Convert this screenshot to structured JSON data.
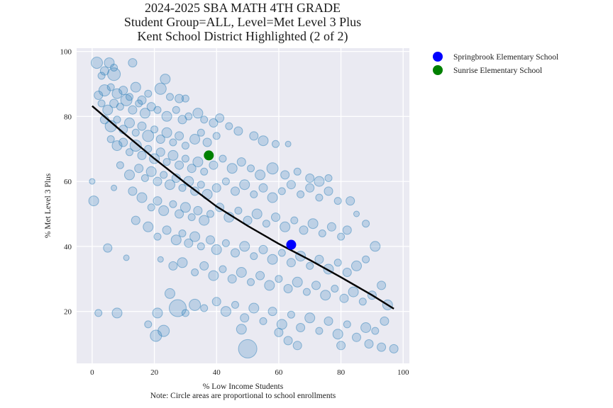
{
  "chart_data": {
    "type": "scatter",
    "title": [
      "2024-2025 SBA MATH 4TH GRADE",
      "Student Group=ALL, Level=Met Level 3 Plus",
      "Kent School District Highlighted (2 of 2)"
    ],
    "xlabel": "% Low Income Students",
    "ylabel": "% Met Level 3 Plus",
    "note": "Note: Circle areas are proportional to school enrollments",
    "xlim": [
      -5,
      102
    ],
    "ylim": [
      4,
      101
    ],
    "xticks": [
      0,
      20,
      40,
      60,
      80,
      100
    ],
    "yticks": [
      20,
      40,
      60,
      80,
      100
    ],
    "grid": true,
    "background_color": "#eaeaf2",
    "point_color": "#1f77b4",
    "legend_placement": "outside-top-right",
    "highlighted": [
      {
        "name": "Springbrook Elementary School",
        "x": 64,
        "y": 40.5,
        "color": "#0000ff"
      },
      {
        "name": "Sunrise Elementary School",
        "x": 37.5,
        "y": 68,
        "color": "#008000"
      }
    ],
    "trend_line": {
      "color": "#000000",
      "points": [
        [
          0,
          83.2
        ],
        [
          10,
          75
        ],
        [
          20,
          67
        ],
        [
          30,
          59.5
        ],
        [
          40,
          52.3
        ],
        [
          50,
          46.3
        ],
        [
          60,
          40.8
        ],
        [
          70,
          35.8
        ],
        [
          80,
          30.5
        ],
        [
          90,
          25
        ],
        [
          97,
          20.8
        ]
      ]
    },
    "points": [
      [
        1.5,
        96.5,
        8
      ],
      [
        4,
        94,
        6
      ],
      [
        5.5,
        96.5,
        7
      ],
      [
        7,
        95,
        5
      ],
      [
        13,
        96.5,
        6
      ],
      [
        7,
        93,
        9
      ],
      [
        3,
        92.5,
        5
      ],
      [
        23.5,
        91.5,
        7
      ],
      [
        2,
        86.5,
        6
      ],
      [
        4,
        88,
        8
      ],
      [
        6,
        89,
        5
      ],
      [
        8,
        87,
        7
      ],
      [
        10,
        88,
        6
      ],
      [
        12,
        86,
        5
      ],
      [
        14,
        89,
        7
      ],
      [
        16,
        85,
        6
      ],
      [
        18,
        87,
        5
      ],
      [
        22,
        88.5,
        8
      ],
      [
        25,
        86,
        5
      ],
      [
        28,
        85.5,
        6
      ],
      [
        30,
        85.5,
        5
      ],
      [
        3,
        84,
        5
      ],
      [
        5,
        82,
        7
      ],
      [
        7,
        84,
        6
      ],
      [
        9,
        83,
        5
      ],
      [
        11,
        85,
        8
      ],
      [
        13,
        82,
        6
      ],
      [
        15,
        84,
        5
      ],
      [
        17,
        81,
        7
      ],
      [
        19,
        83,
        6
      ],
      [
        21,
        82,
        5
      ],
      [
        24,
        80,
        7
      ],
      [
        27,
        82,
        5
      ],
      [
        29,
        79,
        6
      ],
      [
        31,
        80,
        5
      ],
      [
        34,
        81,
        7
      ],
      [
        36,
        79,
        5
      ],
      [
        39,
        78,
        6
      ],
      [
        41,
        79.5,
        6
      ],
      [
        4,
        79,
        6
      ],
      [
        6,
        77,
        8
      ],
      [
        8,
        79,
        5
      ],
      [
        10,
        76,
        6
      ],
      [
        12,
        78,
        7
      ],
      [
        14,
        75,
        5
      ],
      [
        16,
        77,
        6
      ],
      [
        18,
        74,
        8
      ],
      [
        20,
        76,
        5
      ],
      [
        22,
        73,
        6
      ],
      [
        24,
        75,
        7
      ],
      [
        26,
        72,
        5
      ],
      [
        28,
        74,
        6
      ],
      [
        30,
        71,
        5
      ],
      [
        33,
        73,
        7
      ],
      [
        35,
        75,
        5
      ],
      [
        37,
        72,
        6
      ],
      [
        40,
        74,
        5
      ],
      [
        44,
        77,
        5
      ],
      [
        47,
        75.5,
        6
      ],
      [
        52,
        74,
        6
      ],
      [
        55,
        72.5,
        7
      ],
      [
        59,
        71.5,
        5
      ],
      [
        63,
        71.5,
        4
      ],
      [
        6,
        73,
        5
      ],
      [
        8,
        71,
        7
      ],
      [
        10,
        72,
        6
      ],
      [
        12,
        69,
        5
      ],
      [
        14,
        71,
        8
      ],
      [
        16,
        68,
        6
      ],
      [
        18,
        70,
        5
      ],
      [
        20,
        67,
        7
      ],
      [
        22,
        69,
        6
      ],
      [
        24,
        66,
        5
      ],
      [
        26,
        68,
        7
      ],
      [
        28,
        65,
        6
      ],
      [
        30,
        67,
        5
      ],
      [
        32,
        64,
        6
      ],
      [
        34,
        66,
        7
      ],
      [
        36,
        63,
        5
      ],
      [
        39,
        65,
        6
      ],
      [
        42,
        67,
        5
      ],
      [
        45,
        64,
        7
      ],
      [
        48,
        66,
        6
      ],
      [
        51,
        64,
        5
      ],
      [
        54,
        62,
        7
      ],
      [
        58,
        64,
        8
      ],
      [
        62,
        62,
        6
      ],
      [
        66,
        63,
        5
      ],
      [
        70,
        61,
        6
      ],
      [
        73,
        60,
        7
      ],
      [
        76,
        61,
        5
      ],
      [
        9,
        65,
        5
      ],
      [
        12,
        62,
        7
      ],
      [
        15,
        64,
        6
      ],
      [
        17,
        61,
        5
      ],
      [
        19,
        63,
        7
      ],
      [
        21,
        60,
        6
      ],
      [
        23,
        62,
        5
      ],
      [
        25,
        59,
        7
      ],
      [
        27,
        61,
        6
      ],
      [
        29,
        58,
        5
      ],
      [
        31,
        60,
        7
      ],
      [
        33,
        57,
        6
      ],
      [
        35,
        59,
        5
      ],
      [
        37,
        56,
        7
      ],
      [
        40,
        58,
        6
      ],
      [
        43,
        60,
        5
      ],
      [
        46,
        57,
        6
      ],
      [
        49,
        59,
        7
      ],
      [
        52,
        56,
        5
      ],
      [
        55,
        58,
        6
      ],
      [
        58,
        55,
        7
      ],
      [
        61,
        57,
        5
      ],
      [
        64,
        59,
        6
      ],
      [
        67,
        56,
        5
      ],
      [
        70,
        58,
        6
      ],
      [
        73,
        55,
        5
      ],
      [
        76,
        57,
        6
      ],
      [
        79,
        54,
        5
      ],
      [
        83,
        54,
        6
      ],
      [
        0,
        60,
        4
      ],
      [
        0.5,
        54,
        7
      ],
      [
        7,
        58,
        4
      ],
      [
        13,
        57,
        6
      ],
      [
        16,
        55,
        7
      ],
      [
        19,
        52,
        5
      ],
      [
        21,
        54,
        6
      ],
      [
        23,
        51,
        7
      ],
      [
        26,
        53,
        5
      ],
      [
        28,
        50,
        6
      ],
      [
        30,
        52,
        7
      ],
      [
        32,
        49,
        5
      ],
      [
        34,
        51,
        6
      ],
      [
        36,
        48,
        7
      ],
      [
        38,
        50,
        5
      ],
      [
        41,
        52,
        6
      ],
      [
        44,
        49,
        7
      ],
      [
        47,
        51,
        5
      ],
      [
        50,
        48,
        6
      ],
      [
        53,
        50,
        7
      ],
      [
        56,
        47,
        5
      ],
      [
        59,
        49,
        6
      ],
      [
        62,
        46,
        7
      ],
      [
        65,
        48,
        5
      ],
      [
        68,
        45,
        6
      ],
      [
        71,
        47,
        7
      ],
      [
        74,
        44,
        5
      ],
      [
        77,
        46,
        6
      ],
      [
        80,
        43,
        5
      ],
      [
        82,
        45,
        6
      ],
      [
        85,
        50,
        4
      ],
      [
        88,
        47,
        5
      ],
      [
        14,
        48,
        6
      ],
      [
        18,
        46,
        7
      ],
      [
        21,
        43,
        5
      ],
      [
        24,
        45,
        6
      ],
      [
        27,
        42,
        7
      ],
      [
        29,
        44,
        5
      ],
      [
        31,
        41,
        6
      ],
      [
        33,
        43,
        7
      ],
      [
        35,
        40,
        5
      ],
      [
        38,
        42,
        6
      ],
      [
        40,
        39,
        7
      ],
      [
        43,
        41,
        5
      ],
      [
        46,
        38,
        6
      ],
      [
        49,
        40,
        7
      ],
      [
        52,
        37,
        5
      ],
      [
        55,
        39,
        6
      ],
      [
        58,
        36,
        7
      ],
      [
        61,
        38,
        5
      ],
      [
        64,
        35,
        6
      ],
      [
        67,
        37,
        7
      ],
      [
        70,
        34,
        5
      ],
      [
        73,
        36,
        6
      ],
      [
        76,
        33,
        7
      ],
      [
        79,
        35,
        5
      ],
      [
        82,
        32,
        6
      ],
      [
        85,
        34,
        7
      ],
      [
        88,
        36,
        5
      ],
      [
        91,
        40,
        7
      ],
      [
        5,
        39.5,
        6
      ],
      [
        11,
        36.5,
        4
      ],
      [
        22,
        36,
        4
      ],
      [
        26,
        34,
        6
      ],
      [
        29,
        35,
        7
      ],
      [
        33,
        32,
        5
      ],
      [
        36,
        34,
        6
      ],
      [
        39,
        31,
        7
      ],
      [
        42,
        33,
        5
      ],
      [
        45,
        30,
        6
      ],
      [
        48,
        32,
        7
      ],
      [
        51,
        29,
        5
      ],
      [
        54,
        31,
        6
      ],
      [
        57,
        28,
        7
      ],
      [
        60,
        30,
        5
      ],
      [
        63,
        27,
        6
      ],
      [
        66,
        29,
        7
      ],
      [
        69,
        26,
        5
      ],
      [
        72,
        28,
        6
      ],
      [
        75,
        25,
        7
      ],
      [
        78,
        27,
        5
      ],
      [
        81,
        24,
        6
      ],
      [
        84,
        26,
        7
      ],
      [
        87,
        23,
        5
      ],
      [
        90,
        25,
        6
      ],
      [
        93,
        28,
        6
      ],
      [
        95,
        22,
        7
      ],
      [
        2,
        19.5,
        5
      ],
      [
        8,
        19.5,
        7
      ],
      [
        18,
        16,
        5
      ],
      [
        21,
        19.5,
        7
      ],
      [
        25,
        25.5,
        7
      ],
      [
        27.5,
        21,
        12
      ],
      [
        30,
        19.5,
        5
      ],
      [
        33,
        22,
        8
      ],
      [
        36,
        21,
        5
      ],
      [
        40,
        23,
        6
      ],
      [
        43,
        20,
        7
      ],
      [
        46,
        22,
        5
      ],
      [
        49,
        18,
        6
      ],
      [
        52,
        21,
        7
      ],
      [
        55,
        17,
        5
      ],
      [
        58,
        20,
        6
      ],
      [
        61,
        16,
        7
      ],
      [
        64,
        19,
        5
      ],
      [
        67,
        15,
        6
      ],
      [
        70,
        18,
        7
      ],
      [
        73,
        14,
        5
      ],
      [
        76,
        17,
        6
      ],
      [
        79,
        13,
        7
      ],
      [
        82,
        16,
        5
      ],
      [
        85,
        12,
        6
      ],
      [
        88,
        15,
        7
      ],
      [
        91,
        14,
        5
      ],
      [
        94,
        17,
        6
      ],
      [
        20.5,
        12.5,
        8
      ],
      [
        23,
        14,
        8
      ],
      [
        48,
        14.5,
        7
      ],
      [
        50,
        8.5,
        13
      ],
      [
        60,
        13.5,
        6
      ],
      [
        63,
        11,
        6
      ],
      [
        66,
        9.5,
        6
      ],
      [
        80,
        9.5,
        6
      ],
      [
        89,
        10,
        6
      ],
      [
        93,
        9,
        6
      ],
      [
        97,
        8.5,
        6
      ]
    ]
  }
}
